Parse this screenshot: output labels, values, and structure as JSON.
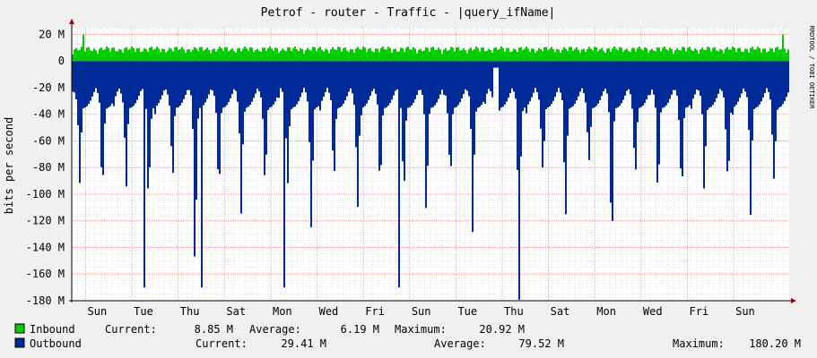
{
  "chart_data": {
    "type": "area",
    "title": "Petrof - router - Traffic - |query_ifName|",
    "ylabel": "bits per second",
    "watermark": "RRDTOOL / TOBI OETIKER",
    "ylim": [
      -180000000,
      25000000
    ],
    "yticks": [
      {
        "value": 20000000,
        "label": "20 M"
      },
      {
        "value": 0,
        "label": "0"
      },
      {
        "value": -20000000,
        "label": "-20 M"
      },
      {
        "value": -40000000,
        "label": "-40 M"
      },
      {
        "value": -60000000,
        "label": "-60 M"
      },
      {
        "value": -80000000,
        "label": "-80 M"
      },
      {
        "value": -100000000,
        "label": "-100 M"
      },
      {
        "value": -120000000,
        "label": "-120 M"
      },
      {
        "value": -140000000,
        "label": "-140 M"
      },
      {
        "value": -160000000,
        "label": "-160 M"
      },
      {
        "value": -180000000,
        "label": "-180 M"
      }
    ],
    "xticks": [
      "Sun",
      "Tue",
      "Thu",
      "Sat",
      "Mon",
      "Wed",
      "Fri",
      "Sun",
      "Tue",
      "Thu",
      "Sat",
      "Mon",
      "Wed",
      "Fri",
      "Sun"
    ],
    "x_span_days": 31,
    "grid": true,
    "series": [
      {
        "name": "Inbound",
        "color": "#00cc00",
        "current": "8.85 M",
        "average": "6.19 M",
        "maximum": "20.92 M"
      },
      {
        "name": "Outbound",
        "color": "#002a97",
        "current": "29.41 M",
        "average": "79.52 M",
        "maximum": "180.20 M"
      }
    ],
    "legend_labels": {
      "current": "Current:",
      "average": "Average:",
      "maximum": "Maximum:"
    }
  }
}
